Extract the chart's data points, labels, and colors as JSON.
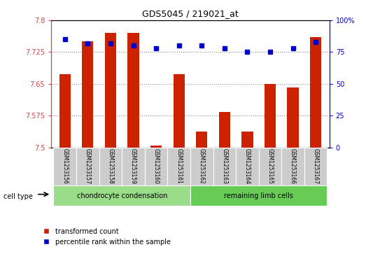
{
  "title": "GDS5045 / 219021_at",
  "samples": [
    "GSM1253156",
    "GSM1253157",
    "GSM1253158",
    "GSM1253159",
    "GSM1253160",
    "GSM1253161",
    "GSM1253162",
    "GSM1253163",
    "GSM1253164",
    "GSM1253165",
    "GSM1253166",
    "GSM1253167"
  ],
  "red_values": [
    7.672,
    7.75,
    7.77,
    7.77,
    7.505,
    7.672,
    7.538,
    7.583,
    7.538,
    7.65,
    7.642,
    7.76
  ],
  "blue_values": [
    85,
    82,
    82,
    80,
    78,
    80,
    80,
    78,
    75,
    75,
    78,
    83
  ],
  "ylim_left": [
    7.5,
    7.8
  ],
  "ylim_right": [
    0,
    100
  ],
  "yticks_left": [
    7.5,
    7.575,
    7.65,
    7.725,
    7.8
  ],
  "yticks_right": [
    0,
    25,
    50,
    75,
    100
  ],
  "ytick_labels_left": [
    "7.5",
    "7.575",
    "7.65",
    "7.725",
    "7.8"
  ],
  "ytick_labels_right": [
    "0",
    "25",
    "50",
    "75",
    "100%"
  ],
  "group1_label": "chondrocyte condensation",
  "group2_label": "remaining limb cells",
  "cell_type_label": "cell type",
  "group1_count": 6,
  "group2_count": 6,
  "legend_red": "transformed count",
  "legend_blue": "percentile rank within the sample",
  "bar_color": "#cc2200",
  "dot_color": "#0000cc",
  "grid_color": "#888888",
  "bg_color": "#cccccc",
  "group1_color": "#99dd88",
  "group2_color": "#66cc55",
  "left_axis_color": "#cc4444",
  "right_axis_color": "#0000cc"
}
